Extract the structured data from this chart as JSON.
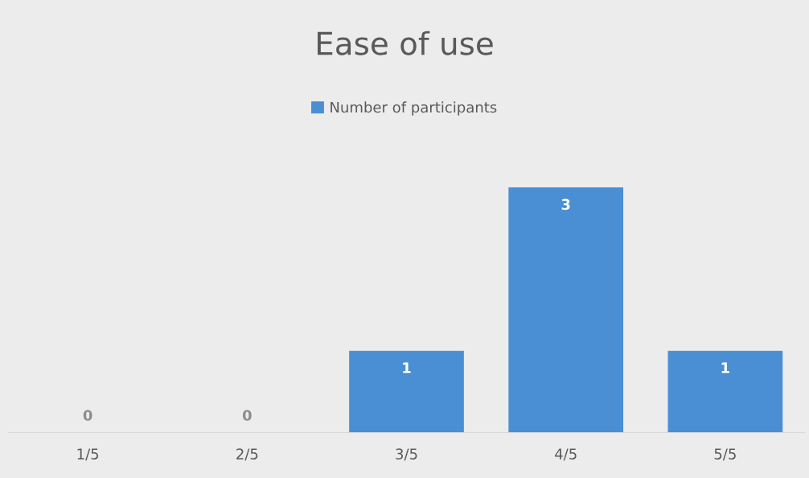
{
  "chart_data": {
    "type": "bar",
    "title": "Ease of use",
    "categories": [
      "1/5",
      "2/5",
      "3/5",
      "4/5",
      "5/5"
    ],
    "series": [
      {
        "name": "Number of participants",
        "color": "#4a8fd4",
        "values": [
          0,
          0,
          1,
          3,
          1
        ]
      }
    ],
    "data_labels": true,
    "legend": "top",
    "grid": false
  }
}
